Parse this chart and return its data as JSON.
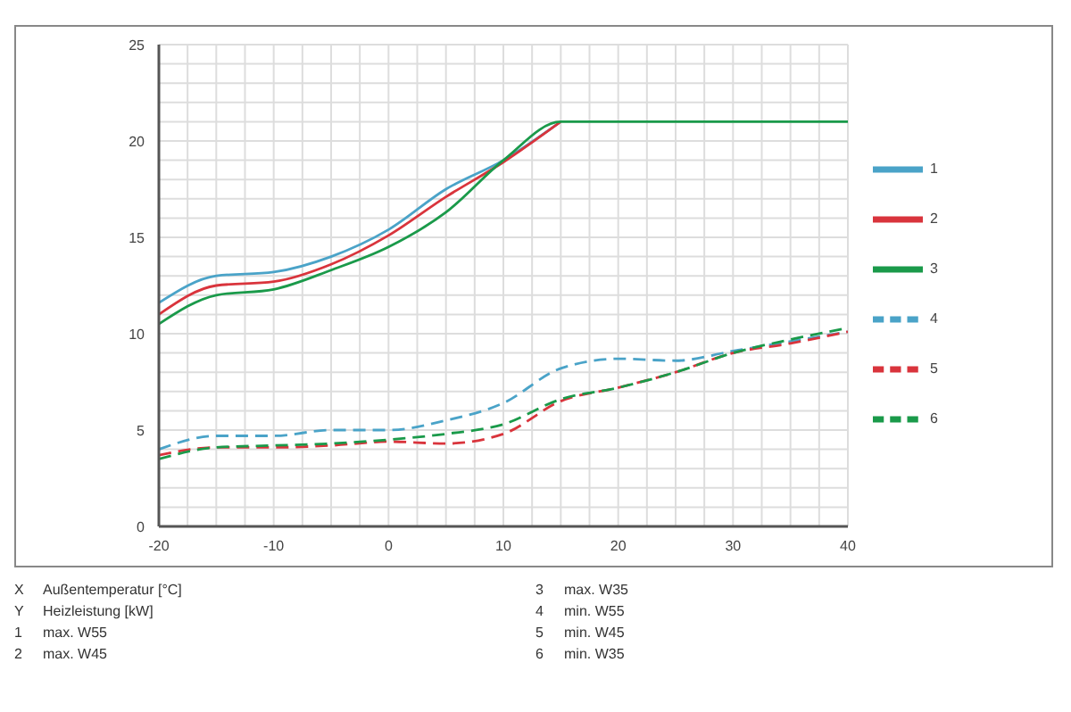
{
  "chart_data": {
    "type": "line",
    "x": [
      -20,
      -15,
      -10,
      -5,
      0,
      5,
      10,
      15,
      20,
      25,
      30,
      35,
      40
    ],
    "xlim": [
      -20,
      40
    ],
    "xticks": [
      -20,
      {
        "value": -17.5,
        "label": null
      },
      {
        "value": -15,
        "label": null
      },
      {
        "value": -12.5,
        "label": null
      },
      -10,
      {
        "value": -7.5,
        "label": null
      },
      {
        "value": -5,
        "label": null
      },
      {
        "value": -2.5,
        "label": null
      },
      0,
      {
        "value": 2.5,
        "label": null
      },
      {
        "value": 5,
        "label": null
      },
      {
        "value": 7.5,
        "label": null
      },
      10,
      {
        "value": 12.5,
        "label": null
      },
      {
        "value": 15,
        "label": null
      },
      {
        "value": 17.5,
        "label": null
      },
      20,
      {
        "value": 22.5,
        "label": null
      },
      {
        "value": 25,
        "label": null
      },
      {
        "value": 27.5,
        "label": null
      },
      30,
      {
        "value": 32.5,
        "label": null
      },
      {
        "value": 35,
        "label": null
      },
      {
        "value": 37.5,
        "label": null
      },
      40
    ],
    "ylim": [
      0,
      25
    ],
    "yticks": [
      0,
      {
        "value": 1,
        "label": null
      },
      {
        "value": 2,
        "label": null
      },
      {
        "value": 3,
        "label": null
      },
      {
        "value": 4,
        "label": null
      },
      5,
      {
        "value": 6,
        "label": null
      },
      {
        "value": 7,
        "label": null
      },
      {
        "value": 8,
        "label": null
      },
      {
        "value": 9,
        "label": null
      },
      10,
      {
        "value": 11,
        "label": null
      },
      {
        "value": 12,
        "label": null
      },
      {
        "value": 13,
        "label": null
      },
      {
        "value": 14,
        "label": null
      },
      15,
      {
        "value": 16,
        "label": null
      },
      {
        "value": 17,
        "label": null
      },
      {
        "value": 18,
        "label": null
      },
      {
        "value": 19,
        "label": null
      },
      20,
      {
        "value": 21,
        "label": null
      },
      {
        "value": 22,
        "label": null
      },
      {
        "value": 23,
        "label": null
      },
      {
        "value": 24,
        "label": null
      },
      25
    ],
    "grid": true,
    "legend": "right",
    "marker": "none",
    "series": [
      {
        "name": "1",
        "color": "#4aa3c8",
        "line_style": "solid",
        "values": [
          11.6,
          13.0,
          13.2,
          14.0,
          15.4,
          17.5,
          19.0,
          21,
          null,
          null,
          null,
          null,
          null
        ]
      },
      {
        "name": "2",
        "color": "#d9343c",
        "line_style": "solid",
        "values": [
          11.0,
          12.5,
          12.7,
          13.6,
          15.1,
          17.1,
          18.9,
          21,
          null,
          null,
          null,
          null,
          null
        ]
      },
      {
        "name": "3",
        "color": "#1a9a4a",
        "line_style": "solid",
        "values": [
          10.5,
          12.0,
          12.3,
          13.3,
          14.5,
          16.3,
          19.0,
          21,
          21,
          21,
          21,
          21,
          21
        ]
      },
      {
        "name": "4",
        "color": "#4aa3c8",
        "line_style": "dashed",
        "values": [
          4.0,
          4.7,
          4.7,
          5.0,
          5.0,
          5.5,
          6.4,
          8.2,
          8.7,
          8.6,
          9.1,
          9.6,
          10.1
        ]
      },
      {
        "name": "5",
        "color": "#d9343c",
        "line_style": "dashed",
        "values": [
          3.7,
          4.1,
          4.1,
          4.2,
          4.4,
          4.3,
          4.8,
          6.5,
          7.2,
          8.0,
          9.0,
          9.5,
          10.1
        ]
      },
      {
        "name": "6",
        "color": "#1a9a4a",
        "line_style": "dashed",
        "values": [
          3.5,
          4.1,
          4.2,
          4.3,
          4.5,
          4.8,
          5.3,
          6.6,
          7.2,
          8.0,
          9.0,
          9.7,
          10.3
        ]
      }
    ],
    "annotations": [
      "X Außentemperatur [°C]",
      "Y Heizleistung [kW]",
      "1 max. W55",
      "2 max. W45",
      "3 max. W35",
      "4 min. W55",
      "5 min. W45",
      "6 min. W35"
    ]
  }
}
